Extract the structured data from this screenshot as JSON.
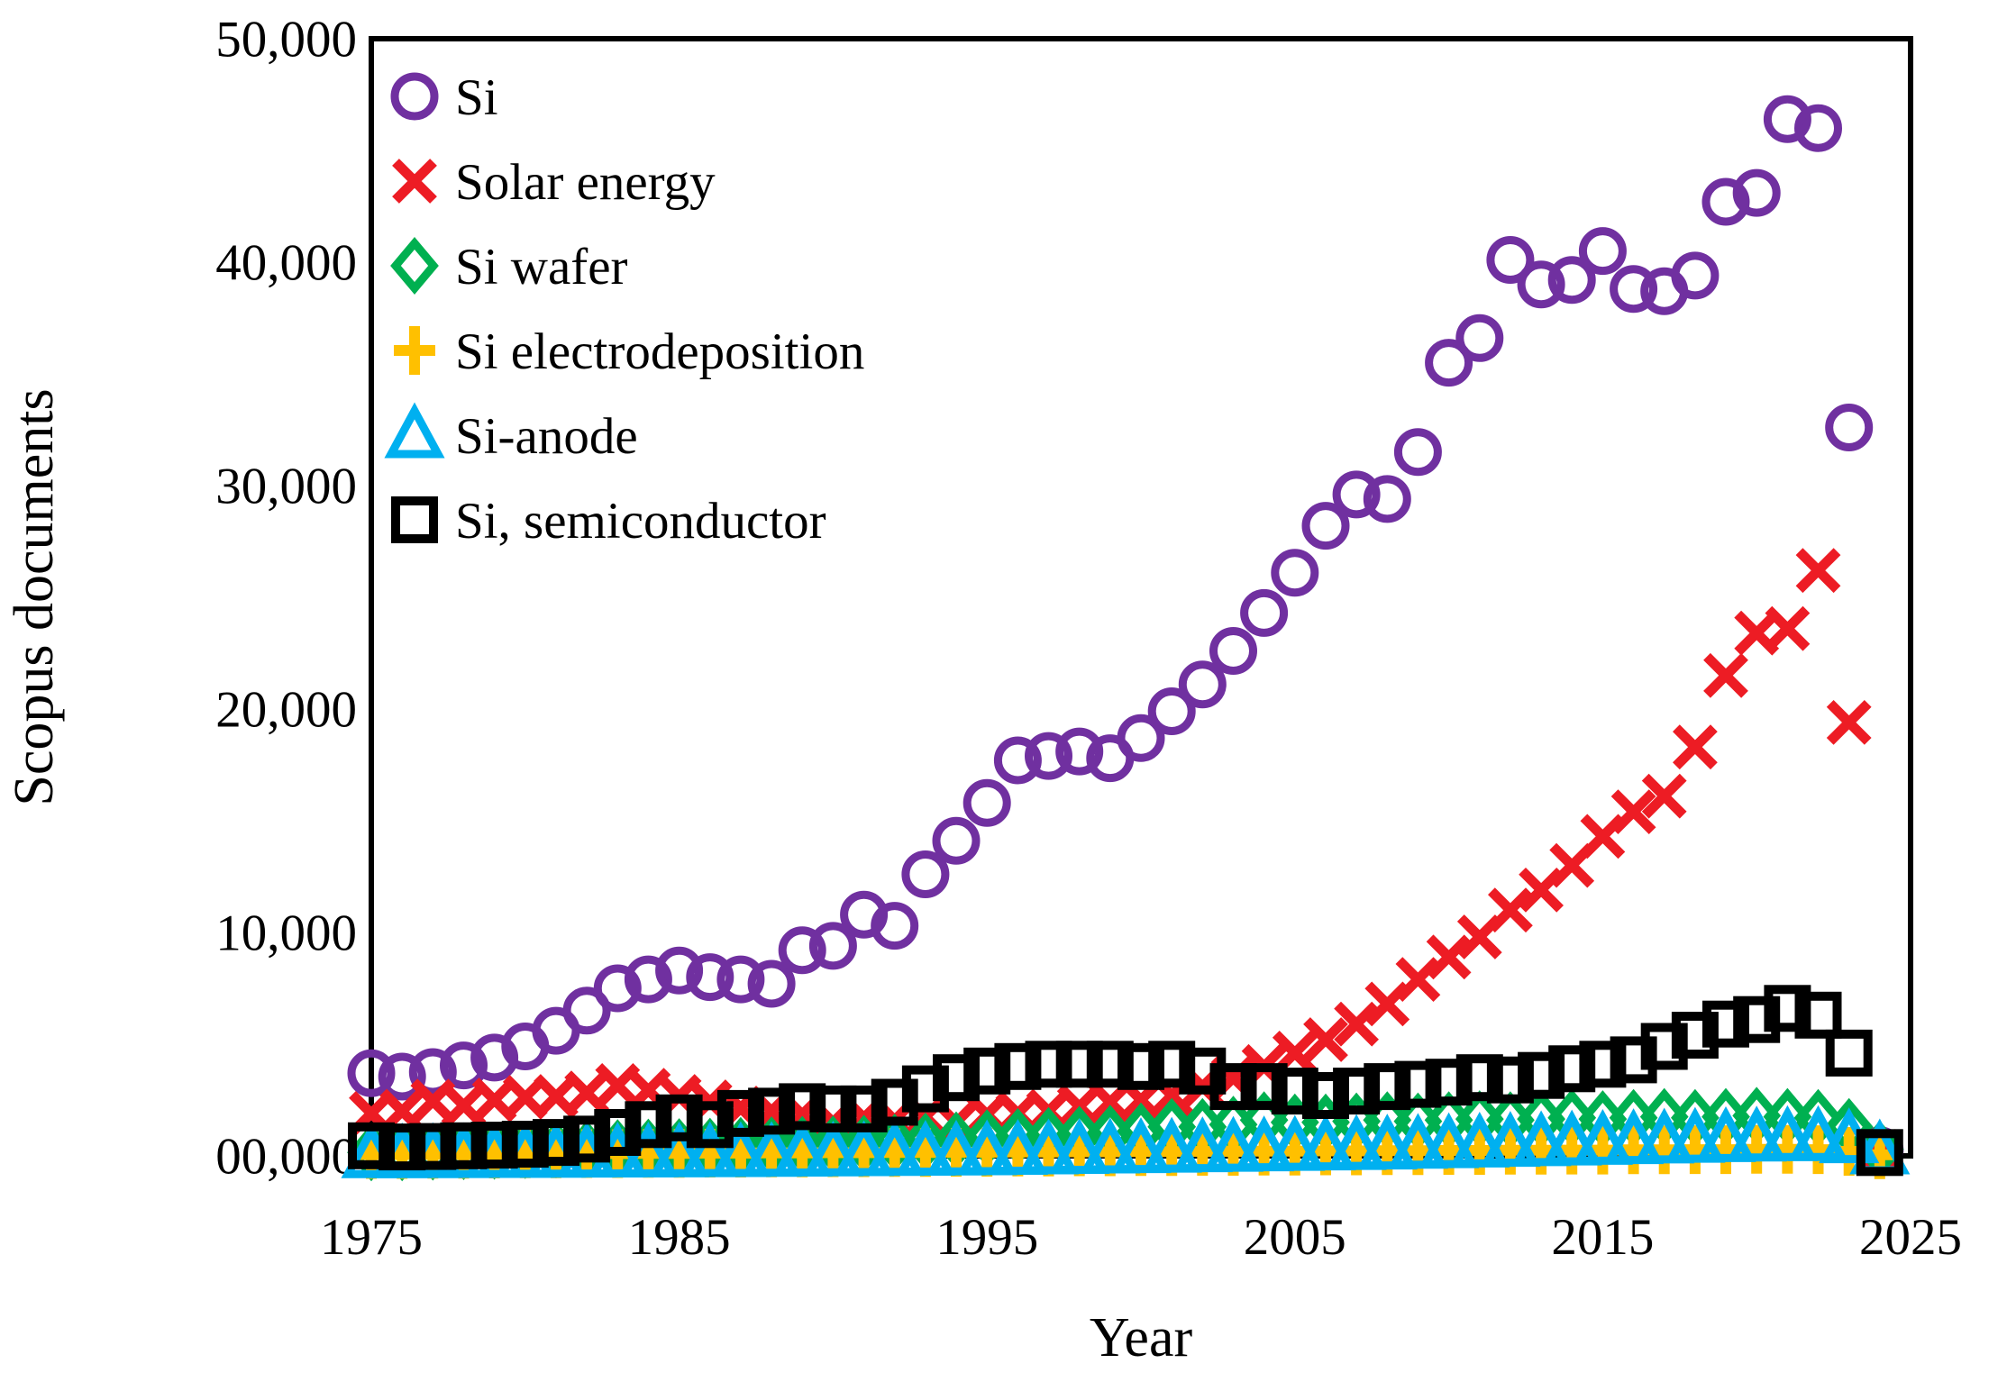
{
  "figure": {
    "kind": "scientific scatter figure",
    "background": "#ffffff"
  },
  "chart_data": {
    "type": "scatter",
    "title": "",
    "xlabel": "Year",
    "ylabel": "Scopus documents",
    "xlim": [
      1975,
      2025
    ],
    "ylim": [
      0,
      50000
    ],
    "grid": "off",
    "legend_position": "top-left-inside",
    "frame_color": "#000000",
    "xticks": {
      "values": [
        1975,
        1985,
        1995,
        2005,
        2015,
        2025
      ],
      "labels": [
        "1975",
        "1985",
        "1995",
        "2005",
        "2015",
        "2025"
      ]
    },
    "yticks": {
      "values": [
        0,
        10000,
        20000,
        30000,
        40000,
        50000
      ],
      "labels": [
        "00,000",
        "10,000",
        "20,000",
        "30,000",
        "40,000",
        "50,000"
      ]
    },
    "x": [
      1975,
      1976,
      1977,
      1978,
      1979,
      1980,
      1981,
      1982,
      1983,
      1984,
      1985,
      1986,
      1987,
      1988,
      1989,
      1990,
      1991,
      1992,
      1993,
      1994,
      1995,
      1996,
      1997,
      1998,
      1999,
      2000,
      2001,
      2002,
      2003,
      2004,
      2005,
      2006,
      2007,
      2008,
      2009,
      2010,
      2011,
      2012,
      2013,
      2014,
      2015,
      2016,
      2017,
      2018,
      2019,
      2020,
      2021,
      2022,
      2023,
      2024
    ],
    "series": [
      {
        "name": "Si",
        "marker": "circle",
        "color": "#7030A0",
        "values": [
          3700,
          3550,
          3750,
          4050,
          4400,
          4900,
          5600,
          6500,
          7500,
          7900,
          8300,
          8000,
          7900,
          7700,
          9200,
          9400,
          10800,
          10300,
          12600,
          14100,
          15800,
          17700,
          17900,
          18100,
          17800,
          18700,
          19900,
          21100,
          22600,
          24300,
          26100,
          28200,
          29600,
          29400,
          31500,
          35500,
          36600,
          40100,
          39000,
          39200,
          40500,
          38800,
          38700,
          39400,
          42700,
          43100,
          46400,
          46000,
          32600,
          250
        ]
      },
      {
        "name": "Solar energy",
        "marker": "x",
        "color": "#ED1C24",
        "values": [
          1900,
          2000,
          2450,
          2250,
          2500,
          2620,
          2660,
          2820,
          3150,
          2940,
          2660,
          2420,
          2140,
          2000,
          1850,
          1500,
          1700,
          1600,
          1750,
          1500,
          1850,
          1900,
          2000,
          2200,
          2400,
          2500,
          2700,
          3100,
          3500,
          4000,
          4600,
          5200,
          5900,
          6800,
          7900,
          8900,
          9800,
          11000,
          11900,
          13000,
          14300,
          15400,
          16100,
          18300,
          21500,
          23400,
          23600,
          26200,
          19400,
          200
        ]
      },
      {
        "name": "Si wafer",
        "marker": "diamond",
        "color": "#00B050",
        "values": [
          150,
          150,
          180,
          200,
          220,
          250,
          280,
          300,
          350,
          380,
          400,
          420,
          450,
          480,
          500,
          520,
          550,
          600,
          650,
          700,
          800,
          850,
          900,
          950,
          1000,
          1100,
          1300,
          1300,
          1400,
          1600,
          1500,
          1500,
          1550,
          1600,
          1550,
          1600,
          1650,
          1600,
          1650,
          1700,
          1650,
          1700,
          1750,
          1700,
          1750,
          1800,
          1750,
          1700,
          1300,
          300
        ]
      },
      {
        "name": "Si electrodeposition",
        "marker": "plus",
        "color": "#FFC000",
        "values": [
          60,
          60,
          70,
          70,
          80,
          90,
          90,
          100,
          100,
          110,
          110,
          120,
          120,
          130,
          130,
          140,
          140,
          150,
          150,
          160,
          160,
          170,
          170,
          180,
          180,
          190,
          190,
          200,
          200,
          210,
          210,
          220,
          220,
          230,
          230,
          240,
          240,
          250,
          250,
          260,
          260,
          270,
          270,
          280,
          280,
          290,
          290,
          280,
          200,
          50
        ]
      },
      {
        "name": "Si-anode",
        "marker": "triangle",
        "color": "#00B0F0",
        "values": [
          30,
          30,
          35,
          35,
          40,
          45,
          50,
          55,
          60,
          65,
          70,
          75,
          80,
          90,
          100,
          110,
          120,
          130,
          140,
          150,
          160,
          180,
          200,
          220,
          240,
          260,
          280,
          300,
          320,
          340,
          360,
          380,
          400,
          420,
          450,
          480,
          510,
          540,
          570,
          600,
          630,
          660,
          690,
          720,
          750,
          780,
          800,
          800,
          700,
          200
        ]
      },
      {
        "name": "Si, semiconductor",
        "marker": "square",
        "color": "#000000",
        "values": [
          450,
          400,
          420,
          450,
          480,
          520,
          600,
          750,
          1050,
          1400,
          1700,
          1400,
          1900,
          2000,
          2200,
          2100,
          2100,
          2400,
          3000,
          3500,
          3800,
          4000,
          4100,
          4100,
          4100,
          4000,
          4100,
          3800,
          3100,
          3100,
          2900,
          2700,
          2900,
          3100,
          3200,
          3300,
          3500,
          3400,
          3600,
          3900,
          4100,
          4300,
          4900,
          5400,
          5900,
          6100,
          6600,
          6300,
          4600,
          150
        ]
      }
    ]
  }
}
